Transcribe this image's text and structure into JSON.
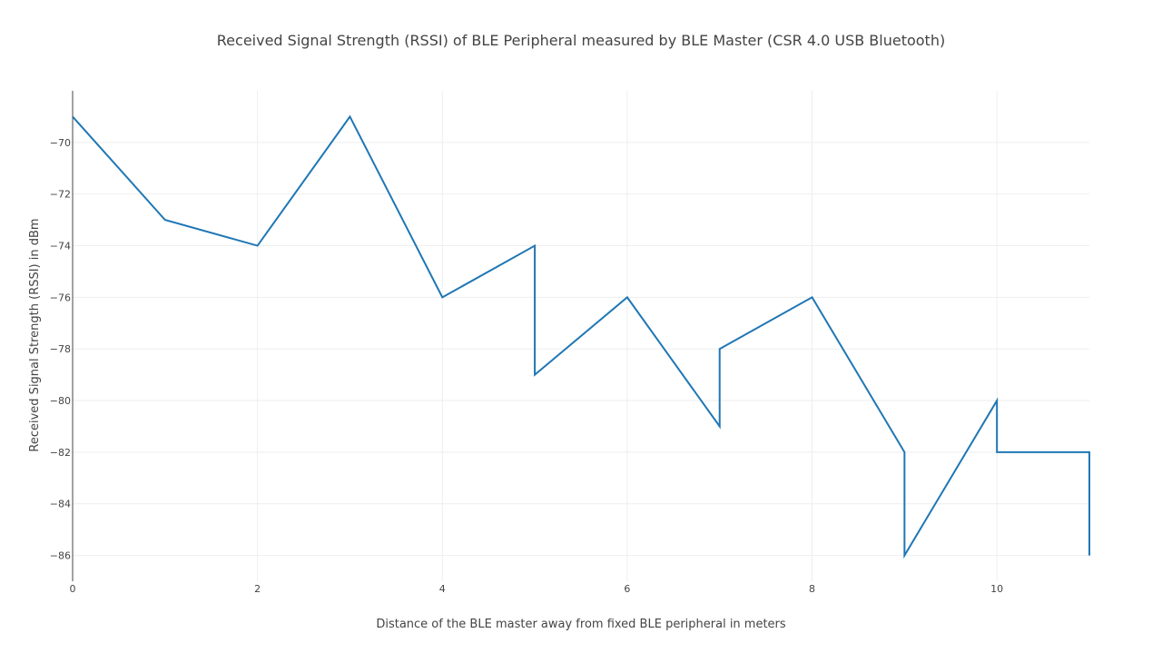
{
  "chart_data": {
    "type": "line",
    "title": "Received Signal Strength (RSSI) of BLE Peripheral measured by BLE Master (CSR 4.0 USB Bluetooth)",
    "xlabel": "Distance of the BLE master away from fixed BLE peripheral in meters",
    "ylabel": "Received Signal Strength (RSSI) in dBm",
    "xlim": [
      0,
      11
    ],
    "ylim": [
      -87,
      -68
    ],
    "x_ticks": [
      0,
      2,
      4,
      6,
      8,
      10
    ],
    "x_tick_labels": [
      "0",
      "2",
      "4",
      "6",
      "8",
      "10"
    ],
    "y_ticks": [
      -70,
      -72,
      -74,
      -76,
      -78,
      -80,
      -82,
      -84,
      -86
    ],
    "y_tick_labels": [
      "−70",
      "−72",
      "−74",
      "−76",
      "−78",
      "−80",
      "−82",
      "−84",
      "−86"
    ],
    "grid": true,
    "line_color": "#1f77b4",
    "series": [
      {
        "x": [
          0,
          1,
          2,
          3,
          4,
          5,
          5,
          6,
          7,
          7,
          8,
          9,
          9,
          10,
          10,
          11,
          11
        ],
        "y": [
          -69,
          -73,
          -74,
          -69,
          -76,
          -74,
          -79,
          -76,
          -81,
          -78,
          -76,
          -82,
          -86,
          -80,
          -82,
          -82,
          -86
        ]
      }
    ]
  }
}
